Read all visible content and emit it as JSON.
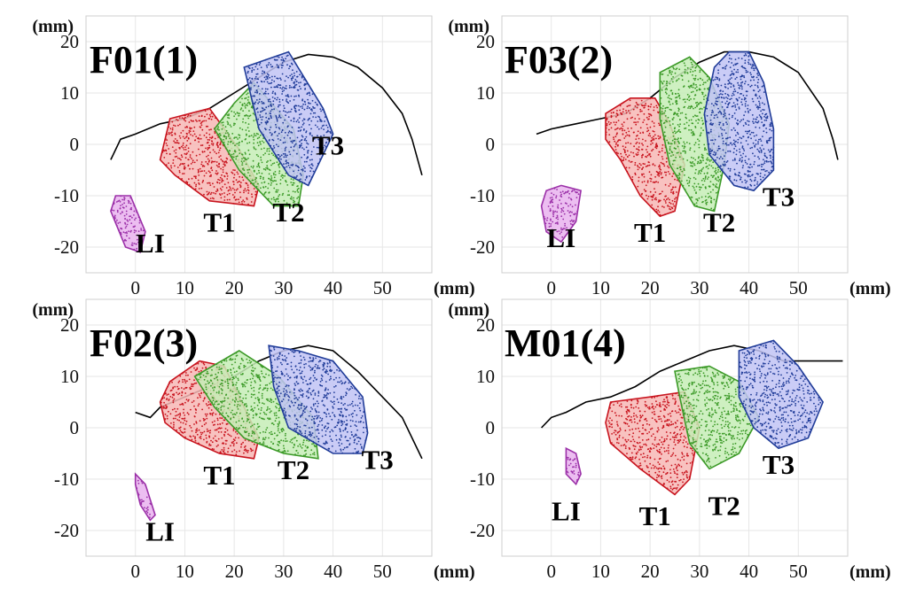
{
  "chart_data": [
    {
      "type": "scatter",
      "title": "F01(1)",
      "xlabel": "(mm)",
      "ylabel": "(mm)",
      "xlim": [
        -10,
        60
      ],
      "ylim": [
        -25,
        25
      ],
      "xticks": [
        0,
        10,
        20,
        30,
        40,
        50
      ],
      "yticks": [
        -20,
        -10,
        0,
        10,
        20
      ],
      "xtick_labels": [
        "0",
        "10",
        "20",
        "30",
        "40",
        "50"
      ],
      "ytick_labels": [
        "-20",
        "-10",
        "0",
        "10",
        "20"
      ],
      "grid": true,
      "outline": [
        [
          -5,
          -3
        ],
        [
          -3,
          1
        ],
        [
          0,
          2
        ],
        [
          5,
          4
        ],
        [
          10,
          5
        ],
        [
          15,
          7
        ],
        [
          20,
          10
        ],
        [
          25,
          13
        ],
        [
          30,
          16
        ],
        [
          35,
          17.5
        ],
        [
          40,
          17
        ],
        [
          45,
          15
        ],
        [
          50,
          11
        ],
        [
          54,
          6
        ],
        [
          56,
          1
        ],
        [
          58,
          -6
        ]
      ],
      "series": [
        {
          "name": "LI",
          "color": "#9b30a8",
          "fill": "#e9b3ee",
          "hull": [
            [
              -4,
              -10
            ],
            [
              -1,
              -10
            ],
            [
              2,
              -17
            ],
            [
              1,
              -21
            ],
            [
              -2,
              -20
            ],
            [
              -5,
              -13
            ]
          ]
        },
        {
          "name": "T1",
          "color": "#c8141e",
          "fill": "#f7b7b5",
          "hull": [
            [
              7,
              5
            ],
            [
              15,
              7
            ],
            [
              21,
              -1
            ],
            [
              25,
              -8
            ],
            [
              24,
              -12
            ],
            [
              15,
              -11
            ],
            [
              8,
              -6
            ],
            [
              5,
              -3
            ]
          ]
        },
        {
          "name": "T2",
          "color": "#3c9a28",
          "fill": "#c6edb6",
          "hull": [
            [
              16,
              3
            ],
            [
              20,
              8
            ],
            [
              24,
              12
            ],
            [
              32,
              3
            ],
            [
              34,
              -6
            ],
            [
              33,
              -12
            ],
            [
              28,
              -12
            ],
            [
              21,
              -5
            ]
          ]
        },
        {
          "name": "T3",
          "color": "#213d99",
          "fill": "#c1c3f4",
          "hull": [
            [
              22,
              15
            ],
            [
              28,
              17
            ],
            [
              31,
              18
            ],
            [
              38,
              7
            ],
            [
              40,
              2
            ],
            [
              37,
              -4
            ],
            [
              35,
              -8
            ],
            [
              31,
              -6
            ],
            [
              25,
              3
            ]
          ]
        }
      ],
      "annotations": [
        {
          "text": "LI",
          "x": 3,
          "y": -21
        },
        {
          "text": "T1",
          "x": 17,
          "y": -17
        },
        {
          "text": "T2",
          "x": 31,
          "y": -15
        },
        {
          "text": "T3",
          "x": 39,
          "y": -2
        }
      ]
    },
    {
      "type": "scatter",
      "title": "F03(2)",
      "xlabel": "(mm)",
      "ylabel": "(mm)",
      "xlim": [
        -10,
        60
      ],
      "ylim": [
        -25,
        25
      ],
      "xticks": [
        0,
        10,
        20,
        30,
        40,
        50
      ],
      "yticks": [
        -20,
        -10,
        0,
        10,
        20
      ],
      "xtick_labels": [
        "0",
        "10",
        "20",
        "30",
        "40",
        "50"
      ],
      "ytick_labels": [
        "-20",
        "-10",
        "0",
        "10",
        "20"
      ],
      "grid": true,
      "outline": [
        [
          -3,
          2
        ],
        [
          0,
          3
        ],
        [
          5,
          4
        ],
        [
          10,
          5
        ],
        [
          15,
          6
        ],
        [
          20,
          9
        ],
        [
          25,
          13
        ],
        [
          30,
          16
        ],
        [
          35,
          18
        ],
        [
          40,
          18
        ],
        [
          45,
          17
        ],
        [
          50,
          14
        ],
        [
          55,
          7
        ],
        [
          57,
          1
        ],
        [
          58,
          -3
        ]
      ],
      "series": [
        {
          "name": "LI",
          "color": "#9b30a8",
          "fill": "#e9b3ee",
          "hull": [
            [
              -1,
              -9
            ],
            [
              2,
              -8
            ],
            [
              6,
              -9
            ],
            [
              5,
              -15
            ],
            [
              2,
              -19
            ],
            [
              -1,
              -17
            ],
            [
              -2,
              -12
            ]
          ]
        },
        {
          "name": "T1",
          "color": "#c8141e",
          "fill": "#f7b7b5",
          "hull": [
            [
              11,
              6
            ],
            [
              16,
              9
            ],
            [
              21,
              9
            ],
            [
              24,
              4
            ],
            [
              27,
              -4
            ],
            [
              25,
              -13
            ],
            [
              22,
              -14
            ],
            [
              18,
              -10
            ],
            [
              14,
              -3
            ],
            [
              11,
              1
            ]
          ]
        },
        {
          "name": "T2",
          "color": "#3c9a28",
          "fill": "#c6edb6",
          "hull": [
            [
              22,
              14
            ],
            [
              28,
              17
            ],
            [
              32,
              13
            ],
            [
              36,
              4
            ],
            [
              35,
              -4
            ],
            [
              33,
              -13
            ],
            [
              29,
              -12
            ],
            [
              24,
              -4
            ],
            [
              22,
              5
            ]
          ]
        },
        {
          "name": "T3",
          "color": "#213d99",
          "fill": "#c1c3f4",
          "hull": [
            [
              33,
              15
            ],
            [
              36,
              18
            ],
            [
              40,
              18
            ],
            [
              43,
              12
            ],
            [
              45,
              3
            ],
            [
              45,
              -5
            ],
            [
              41,
              -9
            ],
            [
              37,
              -8
            ],
            [
              32,
              -2
            ],
            [
              31,
              6
            ]
          ]
        }
      ],
      "annotations": [
        {
          "text": "LI",
          "x": 2,
          "y": -20
        },
        {
          "text": "T1",
          "x": 20,
          "y": -19
        },
        {
          "text": "T2",
          "x": 34,
          "y": -17
        },
        {
          "text": "T3",
          "x": 46,
          "y": -12
        }
      ]
    },
    {
      "type": "scatter",
      "title": "F02(3)",
      "xlabel": "(mm)",
      "ylabel": "(mm)",
      "xlim": [
        -10,
        60
      ],
      "ylim": [
        -25,
        25
      ],
      "xticks": [
        0,
        10,
        20,
        30,
        40,
        50
      ],
      "yticks": [
        -20,
        -10,
        0,
        10,
        20
      ],
      "xtick_labels": [
        "0",
        "10",
        "20",
        "30",
        "40",
        "50"
      ],
      "ytick_labels": [
        "-20",
        "-10",
        "0",
        "10",
        "20"
      ],
      "grid": true,
      "outline": [
        [
          0,
          3
        ],
        [
          3,
          2
        ],
        [
          5,
          4
        ],
        [
          10,
          6
        ],
        [
          15,
          8
        ],
        [
          20,
          10
        ],
        [
          25,
          13
        ],
        [
          30,
          15
        ],
        [
          35,
          16
        ],
        [
          40,
          15
        ],
        [
          45,
          11
        ],
        [
          50,
          6
        ],
        [
          54,
          2
        ],
        [
          58,
          -6
        ]
      ],
      "series": [
        {
          "name": "LI",
          "color": "#9b30a8",
          "fill": "#e9b3ee",
          "hull": [
            [
              0,
              -9
            ],
            [
              2,
              -11
            ],
            [
              4,
              -17
            ],
            [
              3,
              -18
            ],
            [
              1,
              -15
            ],
            [
              0,
              -11
            ]
          ]
        },
        {
          "name": "T1",
          "color": "#c8141e",
          "fill": "#f7b7b5",
          "hull": [
            [
              7,
              9
            ],
            [
              13,
              13
            ],
            [
              18,
              12
            ],
            [
              22,
              4
            ],
            [
              25,
              -2
            ],
            [
              24,
              -6
            ],
            [
              17,
              -5
            ],
            [
              10,
              -2
            ],
            [
              6,
              1
            ],
            [
              5,
              5
            ]
          ]
        },
        {
          "name": "T2",
          "color": "#3c9a28",
          "fill": "#c6edb6",
          "hull": [
            [
              12,
              10
            ],
            [
              21,
              15
            ],
            [
              29,
              10
            ],
            [
              36,
              2
            ],
            [
              37,
              -6
            ],
            [
              30,
              -5
            ],
            [
              22,
              -2
            ],
            [
              16,
              4
            ]
          ]
        },
        {
          "name": "T3",
          "color": "#213d99",
          "fill": "#c1c3f4",
          "hull": [
            [
              27,
              16
            ],
            [
              33,
              15
            ],
            [
              40,
              13
            ],
            [
              46,
              6
            ],
            [
              47,
              -1
            ],
            [
              46,
              -5
            ],
            [
              40,
              -5
            ],
            [
              31,
              0
            ],
            [
              28,
              8
            ]
          ]
        }
      ],
      "annotations": [
        {
          "text": "LI",
          "x": 5,
          "y": -22
        },
        {
          "text": "T1",
          "x": 17,
          "y": -11
        },
        {
          "text": "T2",
          "x": 32,
          "y": -10
        },
        {
          "text": "T3",
          "x": 49,
          "y": -8
        }
      ]
    },
    {
      "type": "scatter",
      "title": "M01(4)",
      "xlabel": "(mm)",
      "ylabel": "(mm)",
      "xlim": [
        -10,
        60
      ],
      "ylim": [
        -25,
        25
      ],
      "xticks": [
        0,
        10,
        20,
        30,
        40,
        50
      ],
      "yticks": [
        -20,
        -10,
        0,
        10,
        20
      ],
      "xtick_labels": [
        "0",
        "10",
        "20",
        "30",
        "40",
        "50"
      ],
      "ytick_labels": [
        "-20",
        "-10",
        "0",
        "10",
        "20"
      ],
      "grid": true,
      "outline": [
        [
          -2,
          0
        ],
        [
          0,
          2
        ],
        [
          3,
          3
        ],
        [
          7,
          5
        ],
        [
          12,
          6
        ],
        [
          17,
          8
        ],
        [
          22,
          11
        ],
        [
          27,
          13
        ],
        [
          32,
          15
        ],
        [
          37,
          16
        ],
        [
          42,
          15
        ],
        [
          47,
          13
        ],
        [
          52,
          13
        ],
        [
          56,
          13
        ],
        [
          59,
          13
        ]
      ],
      "series": [
        {
          "name": "LI",
          "color": "#9b30a8",
          "fill": "#e9b3ee",
          "hull": [
            [
              3,
              -4
            ],
            [
              5,
              -5
            ],
            [
              6,
              -9
            ],
            [
              5,
              -11
            ],
            [
              3,
              -9
            ]
          ]
        },
        {
          "name": "T1",
          "color": "#c8141e",
          "fill": "#f7b7b5",
          "hull": [
            [
              12,
              5
            ],
            [
              20,
              6
            ],
            [
              27,
              7
            ],
            [
              30,
              0
            ],
            [
              28,
              -10
            ],
            [
              25,
              -13
            ],
            [
              18,
              -8
            ],
            [
              12,
              -3
            ],
            [
              11,
              1
            ]
          ]
        },
        {
          "name": "T2",
          "color": "#3c9a28",
          "fill": "#c6edb6",
          "hull": [
            [
              25,
              11
            ],
            [
              32,
              12
            ],
            [
              38,
              9
            ],
            [
              42,
              2
            ],
            [
              38,
              -5
            ],
            [
              32,
              -8
            ],
            [
              28,
              -3
            ],
            [
              26,
              6
            ]
          ]
        },
        {
          "name": "T3",
          "color": "#213d99",
          "fill": "#c1c3f4",
          "hull": [
            [
              38,
              15
            ],
            [
              45,
              17
            ],
            [
              50,
              12
            ],
            [
              55,
              5
            ],
            [
              52,
              -2
            ],
            [
              46,
              -4
            ],
            [
              41,
              0
            ],
            [
              38,
              6
            ]
          ]
        }
      ],
      "annotations": [
        {
          "text": "LI",
          "x": 3,
          "y": -18
        },
        {
          "text": "T1",
          "x": 21,
          "y": -19
        },
        {
          "text": "T2",
          "x": 35,
          "y": -17
        },
        {
          "text": "T3",
          "x": 46,
          "y": -9
        }
      ]
    }
  ]
}
